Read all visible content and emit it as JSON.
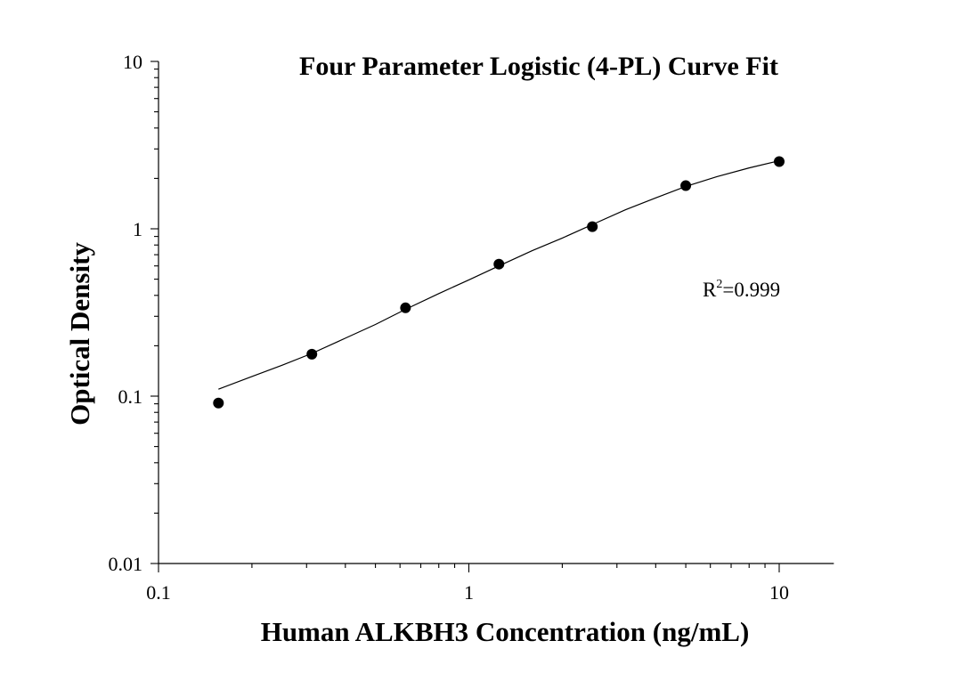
{
  "chart_data": {
    "type": "scatter",
    "title": "Four Parameter Logistic (4-PL) Curve Fit",
    "xlabel": "Human ALKBH3 Concentration (ng/mL)",
    "ylabel": "Optical Density",
    "x_scale": "log",
    "y_scale": "log",
    "xlim": [
      0.1,
      15
    ],
    "ylim": [
      0.01,
      10
    ],
    "x_ticks": [
      {
        "value": 0.1,
        "label": "0.1"
      },
      {
        "value": 1,
        "label": "1"
      },
      {
        "value": 10,
        "label": "10"
      }
    ],
    "y_ticks": [
      {
        "value": 0.01,
        "label": "0.01"
      },
      {
        "value": 0.1,
        "label": "0.1"
      },
      {
        "value": 1,
        "label": "1"
      },
      {
        "value": 10,
        "label": "10"
      }
    ],
    "grid": false,
    "points": [
      {
        "x": 0.156,
        "y": 0.091
      },
      {
        "x": 0.312,
        "y": 0.178
      },
      {
        "x": 0.625,
        "y": 0.337
      },
      {
        "x": 1.25,
        "y": 0.615
      },
      {
        "x": 2.5,
        "y": 1.03
      },
      {
        "x": 5,
        "y": 1.81
      },
      {
        "x": 10,
        "y": 2.52
      }
    ],
    "fit_curve": {
      "model": "4-PL",
      "x": [
        0.156,
        0.2,
        0.25,
        0.312,
        0.4,
        0.5,
        0.625,
        0.8,
        1.0,
        1.25,
        1.6,
        2.0,
        2.5,
        3.2,
        4.0,
        5.0,
        6.3,
        8.0,
        10.0
      ],
      "y": [
        0.11,
        0.131,
        0.153,
        0.18,
        0.222,
        0.268,
        0.33,
        0.41,
        0.495,
        0.6,
        0.74,
        0.88,
        1.06,
        1.3,
        1.53,
        1.79,
        2.05,
        2.31,
        2.55
      ]
    },
    "annotations": [
      {
        "text_main": "R",
        "text_sup": "2",
        "text_after": "=0.999"
      }
    ]
  },
  "colors": {
    "marker": "#000000",
    "curve": "#000000",
    "axis": "#000000"
  }
}
